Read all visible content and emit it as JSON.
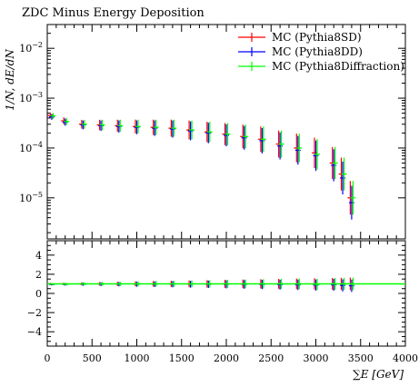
{
  "chart_data": {
    "type": "scatter",
    "title": "ZDC Minus Energy Deposition",
    "xlabel": "∑E [GeV]",
    "ylabel": "1/N, dE/dN",
    "xlim": [
      0,
      4000
    ],
    "ylim": [
      1.5e-06,
      0.03
    ],
    "yscale": "log",
    "ratio_ylim": [
      -5.5,
      5.5
    ],
    "x_ticks": [
      "0",
      "500",
      "1000",
      "1500",
      "2000",
      "2500",
      "3000",
      "3500",
      "4000"
    ],
    "y_ticks": [
      {
        "base": "10",
        "exp": "−2"
      },
      {
        "base": "10",
        "exp": "−3"
      },
      {
        "base": "10",
        "exp": "−4"
      },
      {
        "base": "10",
        "exp": "−5"
      }
    ],
    "ratio_ticks": [
      "4",
      "2",
      "0",
      "−2",
      "−4"
    ],
    "legend_position": "top-right",
    "grid": false,
    "series": [
      {
        "name": "MC (Pythia8SD)",
        "color": "#ff0000",
        "x": [
          50,
          200,
          400,
          600,
          800,
          1000,
          1200,
          1400,
          1600,
          1800,
          2000,
          2200,
          2400,
          2600,
          2800,
          3000,
          3200,
          3300,
          3400
        ],
        "y": [
          0.00045,
          0.00035,
          0.0003,
          0.00029,
          0.00028,
          0.00027,
          0.00026,
          0.00025,
          0.00023,
          0.00021,
          0.00019,
          0.00017,
          0.00015,
          0.00012,
          0.0001,
          8e-05,
          5e-05,
          3e-05,
          1e-05
        ]
      },
      {
        "name": "MC (Pythia8DD)",
        "color": "#0000ff",
        "x": [
          50,
          200,
          400,
          600,
          800,
          1000,
          1200,
          1400,
          1600,
          1800,
          2000,
          2200,
          2400,
          2600,
          2800,
          3000,
          3200,
          3300,
          3400
        ],
        "y": [
          0.00042,
          0.00033,
          0.00029,
          0.00028,
          0.00027,
          0.00026,
          0.00025,
          0.00024,
          0.00022,
          0.0002,
          0.00018,
          0.00016,
          0.00014,
          0.00011,
          9e-05,
          7e-05,
          4.5e-05,
          2.5e-05,
          8e-06
        ]
      },
      {
        "name": "MC (Pythia8Diffraction)",
        "color": "#00ff00",
        "x": [
          50,
          200,
          400,
          600,
          800,
          1000,
          1200,
          1400,
          1600,
          1800,
          2000,
          2200,
          2400,
          2600,
          2800,
          3000,
          3200,
          3300,
          3400
        ],
        "y": [
          0.00044,
          0.00034,
          0.0003,
          0.00029,
          0.00028,
          0.00027,
          0.00026,
          0.00025,
          0.00023,
          0.00021,
          0.00019,
          0.00017,
          0.00015,
          0.00012,
          0.0001,
          7.5e-05,
          5e-05,
          3e-05,
          1e-05
        ]
      }
    ]
  }
}
